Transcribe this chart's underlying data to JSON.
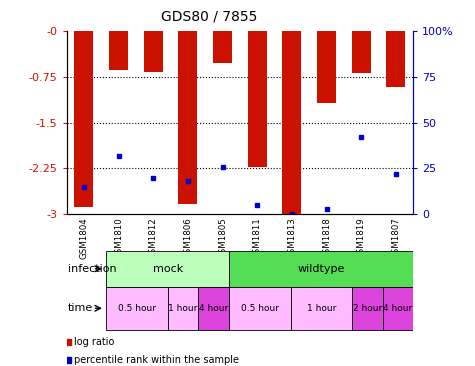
{
  "title": "GDS80 / 7855",
  "samples": [
    "GSM1804",
    "GSM1810",
    "GSM1812",
    "GSM1806",
    "GSM1805",
    "GSM1811",
    "GSM1813",
    "GSM1818",
    "GSM1819",
    "GSM1807"
  ],
  "log_ratios": [
    -2.88,
    -0.63,
    -0.67,
    -2.83,
    -0.52,
    -2.22,
    -3.0,
    -1.18,
    -0.68,
    -0.92
  ],
  "percentile_ranks": [
    15,
    32,
    20,
    18,
    26,
    5,
    0,
    3,
    42,
    22
  ],
  "ylim_left": [
    -3,
    0
  ],
  "ylim_right": [
    0,
    100
  ],
  "yticks_left": [
    0,
    -0.75,
    -1.5,
    -2.25,
    -3
  ],
  "yticks_right": [
    0,
    25,
    50,
    75,
    100
  ],
  "bar_color": "#cc1100",
  "dot_color": "#0000cc",
  "infection_groups": [
    {
      "label": "mock",
      "start": 0,
      "end": 3,
      "color": "#bbffbb"
    },
    {
      "label": "wildtype",
      "start": 4,
      "end": 9,
      "color": "#55dd55"
    }
  ],
  "time_groups": [
    {
      "label": "0.5 hour",
      "start": 0,
      "end": 1,
      "color": "#ffbbff"
    },
    {
      "label": "1 hour",
      "start": 2,
      "end": 2,
      "color": "#ffbbff"
    },
    {
      "label": "4 hour",
      "start": 3,
      "end": 3,
      "color": "#dd44dd"
    },
    {
      "label": "0.5 hour",
      "start": 4,
      "end": 5,
      "color": "#ffbbff"
    },
    {
      "label": "1 hour",
      "start": 6,
      "end": 7,
      "color": "#ffbbff"
    },
    {
      "label": "2 hour",
      "start": 8,
      "end": 8,
      "color": "#dd44dd"
    },
    {
      "label": "4 hour",
      "start": 9,
      "end": 9,
      "color": "#dd44dd"
    }
  ],
  "legend_items": [
    {
      "label": "log ratio",
      "color": "#cc1100"
    },
    {
      "label": "percentile rank within the sample",
      "color": "#0000cc"
    }
  ],
  "bar_width": 0.55,
  "axis_label_color_left": "#cc1100",
  "axis_label_color_right": "#0000cc"
}
